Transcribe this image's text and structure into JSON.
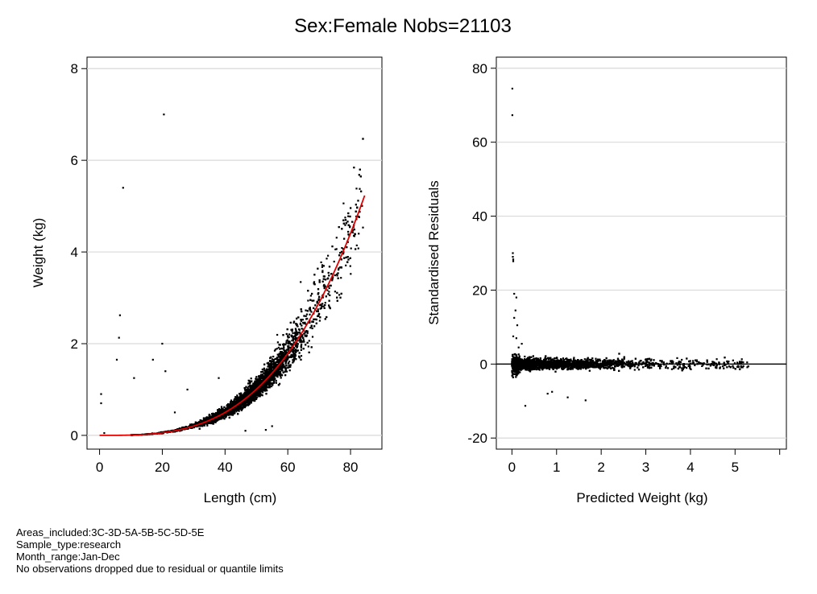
{
  "title": "Sex:Female  Nobs=21103",
  "footnotes": [
    "Areas_included:3C-3D-5A-5B-5C-5D-5E",
    "Sample_type:research",
    "Month_range:Jan-Dec",
    "No observations dropped due to residual or quantile limits"
  ],
  "colors": {
    "points": "#000000",
    "fit_line": "#e00000",
    "gridline": "#d9d9d9",
    "zero_line": "#000000"
  },
  "chart_data": [
    {
      "type": "scatter",
      "xlabel": "Length (cm)",
      "ylabel": "Weight (kg)",
      "xlim": [
        -4,
        90
      ],
      "ylim": [
        -0.3,
        8.25
      ],
      "xticks": [
        0,
        20,
        40,
        60,
        80
      ],
      "yticks": [
        0,
        2,
        4,
        6,
        8
      ],
      "grid": "horizontal",
      "fit": {
        "type": "line",
        "model": "W = a * L^b",
        "a": 4.66e-06,
        "b": 3.14,
        "x_range": [
          0,
          84.5
        ]
      },
      "point_cloud": {
        "x_range": [
          10,
          84
        ],
        "approx_n": 21103,
        "model": "W = a * L^b with multiplicative scatter"
      },
      "outliers": [
        {
          "x": 0.5,
          "y": 0.9
        },
        {
          "x": 0.5,
          "y": 0.7
        },
        {
          "x": 1.5,
          "y": 0.05
        },
        {
          "x": 6.5,
          "y": 2.62
        },
        {
          "x": 6.2,
          "y": 2.13
        },
        {
          "x": 5.5,
          "y": 1.65
        },
        {
          "x": 7.5,
          "y": 5.4
        },
        {
          "x": 11,
          "y": 1.25
        },
        {
          "x": 20.5,
          "y": 7.0
        },
        {
          "x": 20,
          "y": 2.0
        },
        {
          "x": 21,
          "y": 1.4
        },
        {
          "x": 17,
          "y": 1.65
        },
        {
          "x": 28,
          "y": 1.0
        },
        {
          "x": 46.5,
          "y": 0.1
        },
        {
          "x": 55,
          "y": 0.2
        },
        {
          "x": 53,
          "y": 0.12
        },
        {
          "x": 38,
          "y": 1.25
        },
        {
          "x": 24,
          "y": 0.5
        },
        {
          "x": 34,
          "y": 0.35
        }
      ]
    },
    {
      "type": "scatter",
      "xlabel": "Predicted Weight (kg)",
      "ylabel": "Standardised Residuals",
      "xlim": [
        -0.35,
        6.15
      ],
      "ylim": [
        -23,
        83
      ],
      "xticks": [
        0,
        1,
        2,
        3,
        4,
        5
      ],
      "xticks_unlabeled": [
        6
      ],
      "yticks": [
        -20,
        0,
        20,
        40,
        60,
        80
      ],
      "grid": "horizontal",
      "reference_line": {
        "y": 0
      },
      "point_cloud": {
        "x_range": [
          0,
          5.3
        ],
        "y_range": [
          -4,
          3
        ],
        "approx_n": 21103
      },
      "outliers": [
        {
          "x": 0.01,
          "y": 74.5
        },
        {
          "x": 0.01,
          "y": 67.3
        },
        {
          "x": 0.02,
          "y": 30
        },
        {
          "x": 0.02,
          "y": 29
        },
        {
          "x": 0.03,
          "y": 28.3
        },
        {
          "x": 0.03,
          "y": 27.8
        },
        {
          "x": 0.05,
          "y": 19
        },
        {
          "x": 0.1,
          "y": 18
        },
        {
          "x": 0.08,
          "y": 14.5
        },
        {
          "x": 0.05,
          "y": 12.5
        },
        {
          "x": 0.12,
          "y": 10.5
        },
        {
          "x": 0.03,
          "y": 7.5
        },
        {
          "x": 0.1,
          "y": 7
        },
        {
          "x": 0.3,
          "y": -11.3
        },
        {
          "x": 0.8,
          "y": -8
        },
        {
          "x": 0.9,
          "y": -7.5
        },
        {
          "x": 1.25,
          "y": -9
        },
        {
          "x": 1.65,
          "y": -9.8
        },
        {
          "x": 0.15,
          "y": 4.5
        },
        {
          "x": 0.22,
          "y": 5.5
        }
      ]
    }
  ]
}
